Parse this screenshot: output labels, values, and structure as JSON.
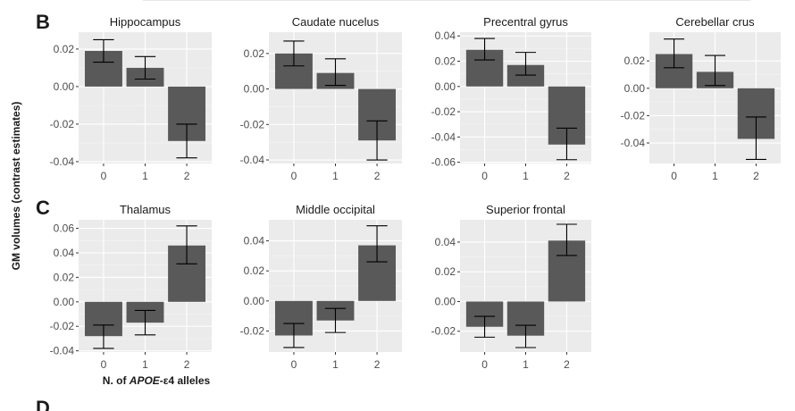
{
  "figure": {
    "section_labels": [
      "B",
      "C"
    ],
    "ylabel": "GM volumes (contrast estimates)",
    "xlabel_prefix": "N. of ",
    "xlabel_gene": "APOE",
    "xlabel_allele": "-ε4",
    "xlabel_suffix": " alleles",
    "cropped_letter": "D"
  },
  "colors": {
    "panel_bg": "#ebebeb",
    "grid_major": "#ffffff",
    "grid_minor": "#f5f5f5",
    "bar": "#595959",
    "error_bar": "#000000"
  },
  "chart_data": [
    {
      "type": "bar",
      "section": "B",
      "title": "Hippocampus",
      "categories": [
        "0",
        "1",
        "2"
      ],
      "values": [
        0.019,
        0.01,
        -0.029
      ],
      "error_low": [
        0.013,
        0.004,
        -0.038
      ],
      "error_high": [
        0.025,
        0.016,
        -0.02
      ],
      "ylim": [
        -0.041,
        0.029
      ],
      "yticks": [
        -0.04,
        -0.02,
        0.0,
        0.02
      ],
      "ytick_labels": [
        "-0.04",
        "-0.02",
        "0.00",
        "0.02"
      ],
      "xlabel": "",
      "ylabel": ""
    },
    {
      "type": "bar",
      "section": "B",
      "title": "Caudate nucelus",
      "categories": [
        "0",
        "1",
        "2"
      ],
      "values": [
        0.02,
        0.009,
        -0.029
      ],
      "error_low": [
        0.013,
        0.002,
        -0.04
      ],
      "error_high": [
        0.027,
        0.017,
        -0.018
      ],
      "ylim": [
        -0.042,
        0.032
      ],
      "yticks": [
        -0.04,
        -0.02,
        0.0,
        0.02
      ],
      "ytick_labels": [
        "-0.04",
        "-0.02",
        "0.00",
        "0.02"
      ],
      "xlabel": "",
      "ylabel": ""
    },
    {
      "type": "bar",
      "section": "B",
      "title": "Precentral gyrus",
      "categories": [
        "0",
        "1",
        "2"
      ],
      "values": [
        0.029,
        0.017,
        -0.046
      ],
      "error_low": [
        0.021,
        0.009,
        -0.058
      ],
      "error_high": [
        0.038,
        0.027,
        -0.033
      ],
      "ylim": [
        -0.061,
        0.043
      ],
      "yticks": [
        -0.06,
        -0.04,
        -0.02,
        0.0,
        0.02,
        0.04
      ],
      "ytick_labels": [
        "-0.06",
        "-0.04",
        "-0.02",
        "0.00",
        "0.02",
        "0.04"
      ],
      "xlabel": "",
      "ylabel": ""
    },
    {
      "type": "bar",
      "section": "B",
      "title": "Cerebellar crus",
      "categories": [
        "0",
        "1",
        "2"
      ],
      "values": [
        0.025,
        0.012,
        -0.037
      ],
      "error_low": [
        0.015,
        0.002,
        -0.052
      ],
      "error_high": [
        0.036,
        0.024,
        -0.021
      ],
      "ylim": [
        -0.055,
        0.041
      ],
      "yticks": [
        -0.04,
        -0.02,
        0.0,
        0.02
      ],
      "ytick_labels": [
        "-0.04",
        "-0.02",
        "0.00",
        "0.02"
      ],
      "xlabel": "",
      "ylabel": ""
    },
    {
      "type": "bar",
      "section": "C",
      "title": "Thalamus",
      "categories": [
        "0",
        "1",
        "2"
      ],
      "values": [
        -0.028,
        -0.017,
        0.046
      ],
      "error_low": [
        -0.038,
        -0.027,
        0.031
      ],
      "error_high": [
        -0.019,
        -0.007,
        0.062
      ],
      "ylim": [
        -0.041,
        0.067
      ],
      "yticks": [
        -0.04,
        -0.02,
        0.0,
        0.02,
        0.04,
        0.06
      ],
      "ytick_labels": [
        "-0.04",
        "-0.02",
        "0.00",
        "0.02",
        "0.04",
        "0.06"
      ],
      "xlabel": "",
      "ylabel": ""
    },
    {
      "type": "bar",
      "section": "C",
      "title": "Middle occipital",
      "categories": [
        "0",
        "1",
        "2"
      ],
      "values": [
        -0.023,
        -0.013,
        0.037
      ],
      "error_low": [
        -0.031,
        -0.021,
        0.026
      ],
      "error_high": [
        -0.015,
        -0.005,
        0.05
      ],
      "ylim": [
        -0.034,
        0.054
      ],
      "yticks": [
        -0.02,
        0.0,
        0.02,
        0.04
      ],
      "ytick_labels": [
        "-0.02",
        "0.00",
        "0.02",
        "0.04"
      ],
      "xlabel": "",
      "ylabel": ""
    },
    {
      "type": "bar",
      "section": "C",
      "title": "Superior frontal",
      "categories": [
        "0",
        "1",
        "2"
      ],
      "values": [
        -0.017,
        -0.023,
        0.041
      ],
      "error_low": [
        -0.024,
        -0.031,
        0.031
      ],
      "error_high": [
        -0.01,
        -0.016,
        0.052
      ],
      "ylim": [
        -0.034,
        0.055
      ],
      "yticks": [
        -0.02,
        0.0,
        0.02,
        0.04
      ],
      "ytick_labels": [
        "-0.02",
        "0.00",
        "0.02",
        "0.04"
      ],
      "xlabel": "",
      "ylabel": ""
    }
  ]
}
